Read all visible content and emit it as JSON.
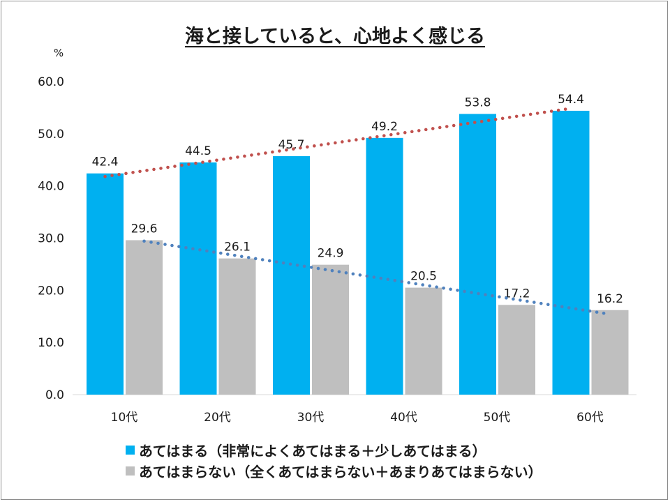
{
  "chart_data": {
    "type": "bar",
    "title": "海と接していると、心地よく感じる",
    "unit_label": "%",
    "categories": [
      "10代",
      "20代",
      "30代",
      "40代",
      "50代",
      "60代"
    ],
    "ylim": [
      0,
      60
    ],
    "yticks": [
      "0.0",
      "10.0",
      "20.0",
      "30.0",
      "40.0",
      "50.0",
      "60.0"
    ],
    "grid": false,
    "legend_position": "bottom",
    "series": [
      {
        "name": "あてはまる（非常によくあてはまる＋少しあてはまる）",
        "color": "#00b0f0",
        "values": [
          42.4,
          44.5,
          45.7,
          49.2,
          53.8,
          54.4
        ],
        "labels": [
          "42.4",
          "44.5",
          "45.7",
          "49.2",
          "53.8",
          "54.4"
        ],
        "trendline": {
          "type": "linear",
          "color": "#c0504d",
          "style": "dotted"
        }
      },
      {
        "name": "あてはまらない（全くあてはまらない＋あまりあてはまらない）",
        "color": "#bfbfbf",
        "values": [
          29.6,
          26.1,
          24.9,
          20.5,
          17.2,
          16.2
        ],
        "labels": [
          "29.6",
          "26.1",
          "24.9",
          "20.5",
          "17.2",
          "16.2"
        ],
        "trendline": {
          "type": "linear",
          "color": "#4f81bd",
          "style": "dotted"
        }
      }
    ]
  }
}
